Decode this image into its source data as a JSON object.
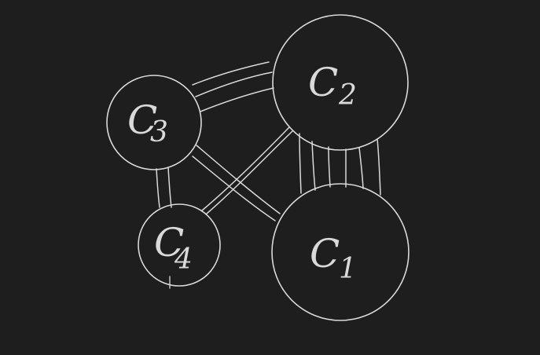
{
  "diagram": {
    "background_color": "#1e1e1e",
    "stroke_color": "#d9d9d9",
    "nodes": [
      {
        "id": "c1",
        "letter": "C",
        "subscript": "1"
      },
      {
        "id": "c2",
        "letter": "C",
        "subscript": "2"
      },
      {
        "id": "c3",
        "letter": "C",
        "subscript": "3"
      },
      {
        "id": "c4",
        "letter": "C",
        "subscript": "4"
      }
    ],
    "edges": [
      {
        "from": "c3",
        "to": "c2",
        "strands": 3
      },
      {
        "from": "c3",
        "to": "c4",
        "strands": 2
      },
      {
        "from": "c3",
        "to": "c1",
        "strands": 2
      },
      {
        "from": "c2",
        "to": "c4",
        "strands": 2
      },
      {
        "from": "c2",
        "to": "c1",
        "strands": 6
      }
    ]
  }
}
